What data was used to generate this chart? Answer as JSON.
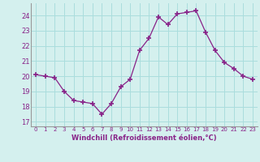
{
  "hours": [
    0,
    1,
    2,
    3,
    4,
    5,
    6,
    7,
    8,
    9,
    10,
    11,
    12,
    13,
    14,
    15,
    16,
    17,
    18,
    19,
    20,
    21,
    22,
    23
  ],
  "values": [
    20.1,
    20.0,
    19.9,
    19.0,
    18.4,
    18.3,
    18.2,
    17.5,
    18.2,
    19.3,
    19.8,
    21.7,
    22.5,
    23.9,
    23.4,
    24.1,
    24.2,
    24.3,
    22.9,
    21.7,
    20.9,
    20.5,
    20.0,
    19.8
  ],
  "line_color": "#882288",
  "marker_color": "#882288",
  "bg_color": "#d4f0ee",
  "grid_color": "#aadddd",
  "tick_label_color": "#882288",
  "xlabel": "Windchill (Refroidissement éolien,°C)",
  "ylabel_ticks": [
    17,
    18,
    19,
    20,
    21,
    22,
    23,
    24
  ],
  "ylim": [
    16.7,
    24.8
  ],
  "xlim": [
    -0.5,
    23.5
  ]
}
